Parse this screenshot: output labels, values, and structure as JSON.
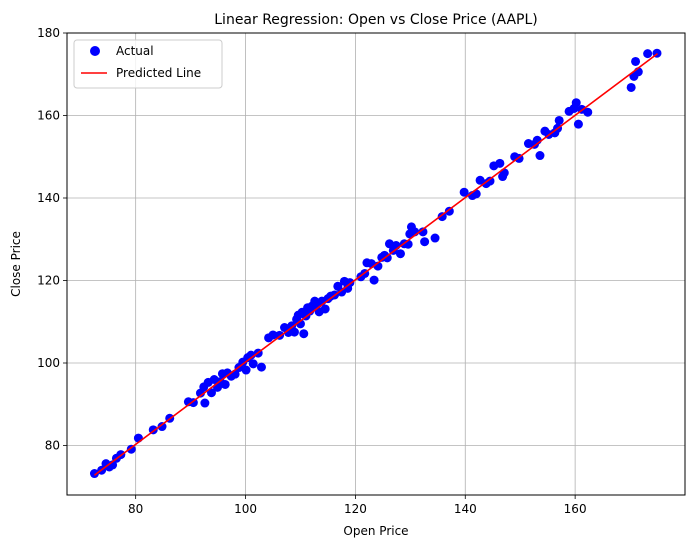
{
  "chart_data": {
    "type": "scatter",
    "title": "Linear Regression: Open vs Close Price (AAPL)",
    "xlabel": "Open Price",
    "ylabel": "Close Price",
    "xlim": [
      67.5,
      180.0
    ],
    "ylim": [
      68.0,
      180.0
    ],
    "xticks": [
      80,
      100,
      120,
      140,
      160
    ],
    "yticks": [
      80,
      100,
      120,
      140,
      160,
      180
    ],
    "grid": true,
    "legend_position": "top-left",
    "colors": {
      "actual": "#0000ff",
      "predicted": "#ff0000",
      "grid": "#b0b0b0"
    },
    "series": [
      {
        "name": "Actual",
        "kind": "scatter",
        "points": [
          [
            72.5,
            73.2
          ],
          [
            73.8,
            74.0
          ],
          [
            74.6,
            75.6
          ],
          [
            75.2,
            74.8
          ],
          [
            75.8,
            75.3
          ],
          [
            76.5,
            76.9
          ],
          [
            77.3,
            77.8
          ],
          [
            79.2,
            79.1
          ],
          [
            80.5,
            81.8
          ],
          [
            83.2,
            83.8
          ],
          [
            84.8,
            84.6
          ],
          [
            86.2,
            86.6
          ],
          [
            89.6,
            90.6
          ],
          [
            90.5,
            90.4
          ],
          [
            91.8,
            92.7
          ],
          [
            92.4,
            94.2
          ],
          [
            92.6,
            90.3
          ],
          [
            93.2,
            95.3
          ],
          [
            93.8,
            92.8
          ],
          [
            94.3,
            96.0
          ],
          [
            94.9,
            94.1
          ],
          [
            95.4,
            95.5
          ],
          [
            95.8,
            97.4
          ],
          [
            96.3,
            94.8
          ],
          [
            96.7,
            97.6
          ],
          [
            97.4,
            96.8
          ],
          [
            98.1,
            97.3
          ],
          [
            98.8,
            98.9
          ],
          [
            99.5,
            100.2
          ],
          [
            100.1,
            98.3
          ],
          [
            100.4,
            101.3
          ],
          [
            101.0,
            101.9
          ],
          [
            101.4,
            99.8
          ],
          [
            102.3,
            102.4
          ],
          [
            102.9,
            99.0
          ],
          [
            104.2,
            106.1
          ],
          [
            105.0,
            106.8
          ],
          [
            106.2,
            106.7
          ],
          [
            107.1,
            108.6
          ],
          [
            107.8,
            107.4
          ],
          [
            108.4,
            109.0
          ],
          [
            108.9,
            107.5
          ],
          [
            109.3,
            110.6
          ],
          [
            109.6,
            111.6
          ],
          [
            110.0,
            109.5
          ],
          [
            110.3,
            112.3
          ],
          [
            110.6,
            107.1
          ],
          [
            111.0,
            111.4
          ],
          [
            111.3,
            113.4
          ],
          [
            111.7,
            112.6
          ],
          [
            112.1,
            113.8
          ],
          [
            112.6,
            115.0
          ],
          [
            113.0,
            114.1
          ],
          [
            113.4,
            112.4
          ],
          [
            113.9,
            115.0
          ],
          [
            114.5,
            113.1
          ],
          [
            115.0,
            115.6
          ],
          [
            115.5,
            116.2
          ],
          [
            116.2,
            116.5
          ],
          [
            116.8,
            118.6
          ],
          [
            117.5,
            117.2
          ],
          [
            118.0,
            119.8
          ],
          [
            118.6,
            118.1
          ],
          [
            119.0,
            119.5
          ],
          [
            121.0,
            120.9
          ],
          [
            121.7,
            121.7
          ],
          [
            122.1,
            124.3
          ],
          [
            122.9,
            124.1
          ],
          [
            123.4,
            120.1
          ],
          [
            124.1,
            123.5
          ],
          [
            124.8,
            125.6
          ],
          [
            125.3,
            126.1
          ],
          [
            125.8,
            125.5
          ],
          [
            126.2,
            128.9
          ],
          [
            126.9,
            127.3
          ],
          [
            127.4,
            128.5
          ],
          [
            128.2,
            126.5
          ],
          [
            128.9,
            128.9
          ],
          [
            129.6,
            128.8
          ],
          [
            129.9,
            131.3
          ],
          [
            130.2,
            133.0
          ],
          [
            130.8,
            131.8
          ],
          [
            132.3,
            131.8
          ],
          [
            132.6,
            129.4
          ],
          [
            134.5,
            130.3
          ],
          [
            135.8,
            135.5
          ],
          [
            137.1,
            136.8
          ],
          [
            139.8,
            141.4
          ],
          [
            141.3,
            140.6
          ],
          [
            142.0,
            141.0
          ],
          [
            142.7,
            144.3
          ],
          [
            143.8,
            143.5
          ],
          [
            144.5,
            144.1
          ],
          [
            145.2,
            147.8
          ],
          [
            146.3,
            148.4
          ],
          [
            146.8,
            145.2
          ],
          [
            147.1,
            146.1
          ],
          [
            149.0,
            150.0
          ],
          [
            149.8,
            149.6
          ],
          [
            151.5,
            153.2
          ],
          [
            152.6,
            153.0
          ],
          [
            153.1,
            154.0
          ],
          [
            153.6,
            150.3
          ],
          [
            154.5,
            156.2
          ],
          [
            155.2,
            155.4
          ],
          [
            156.3,
            155.8
          ],
          [
            156.8,
            156.9
          ],
          [
            157.1,
            158.8
          ],
          [
            158.9,
            161.0
          ],
          [
            159.8,
            161.7
          ],
          [
            160.2,
            163.1
          ],
          [
            160.6,
            157.9
          ],
          [
            161.2,
            161.5
          ],
          [
            162.3,
            160.8
          ],
          [
            170.2,
            166.8
          ],
          [
            170.7,
            169.5
          ],
          [
            171.0,
            173.1
          ],
          [
            171.5,
            170.6
          ],
          [
            173.2,
            175.0
          ],
          [
            174.9,
            175.1
          ]
        ]
      },
      {
        "name": "Predicted Line",
        "kind": "line",
        "points": [
          [
            72.5,
            72.8
          ],
          [
            175.0,
            175.0
          ]
        ]
      }
    ]
  }
}
